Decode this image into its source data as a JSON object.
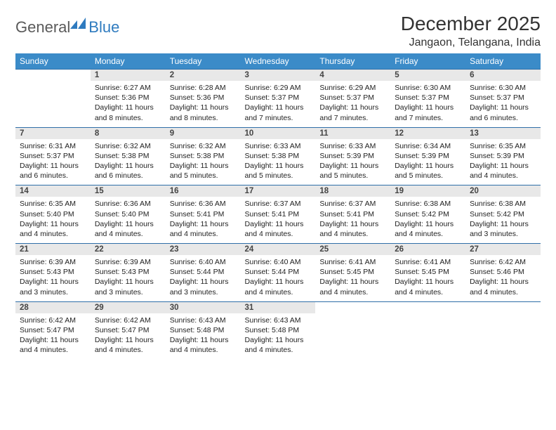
{
  "logo": {
    "brand_a": "General",
    "brand_b": "Blue"
  },
  "title": "December 2025",
  "location": "Jangaon, Telangana, India",
  "colors": {
    "header_bg": "#3b8bc8",
    "header_text": "#ffffff",
    "daynum_bg": "#e8e8e8",
    "row_border": "#2f6fa8",
    "logo_gray": "#5a5a5a",
    "logo_blue": "#2f7bbf",
    "body_text": "#222222",
    "page_bg": "#ffffff"
  },
  "fonts": {
    "body_pt": 10.5,
    "daynum_pt": 11.5,
    "header_pt": 12,
    "title_pt": 28,
    "location_pt": 16
  },
  "weekdays": [
    "Sunday",
    "Monday",
    "Tuesday",
    "Wednesday",
    "Thursday",
    "Friday",
    "Saturday"
  ],
  "layout": {
    "first_weekday_offset": 1,
    "columns": 7,
    "rows": 5
  },
  "days": [
    {
      "n": 1,
      "sunrise": "6:27 AM",
      "sunset": "5:36 PM",
      "daylight": "11 hours and 8 minutes."
    },
    {
      "n": 2,
      "sunrise": "6:28 AM",
      "sunset": "5:36 PM",
      "daylight": "11 hours and 8 minutes."
    },
    {
      "n": 3,
      "sunrise": "6:29 AM",
      "sunset": "5:37 PM",
      "daylight": "11 hours and 7 minutes."
    },
    {
      "n": 4,
      "sunrise": "6:29 AM",
      "sunset": "5:37 PM",
      "daylight": "11 hours and 7 minutes."
    },
    {
      "n": 5,
      "sunrise": "6:30 AM",
      "sunset": "5:37 PM",
      "daylight": "11 hours and 7 minutes."
    },
    {
      "n": 6,
      "sunrise": "6:30 AM",
      "sunset": "5:37 PM",
      "daylight": "11 hours and 6 minutes."
    },
    {
      "n": 7,
      "sunrise": "6:31 AM",
      "sunset": "5:37 PM",
      "daylight": "11 hours and 6 minutes."
    },
    {
      "n": 8,
      "sunrise": "6:32 AM",
      "sunset": "5:38 PM",
      "daylight": "11 hours and 6 minutes."
    },
    {
      "n": 9,
      "sunrise": "6:32 AM",
      "sunset": "5:38 PM",
      "daylight": "11 hours and 5 minutes."
    },
    {
      "n": 10,
      "sunrise": "6:33 AM",
      "sunset": "5:38 PM",
      "daylight": "11 hours and 5 minutes."
    },
    {
      "n": 11,
      "sunrise": "6:33 AM",
      "sunset": "5:39 PM",
      "daylight": "11 hours and 5 minutes."
    },
    {
      "n": 12,
      "sunrise": "6:34 AM",
      "sunset": "5:39 PM",
      "daylight": "11 hours and 5 minutes."
    },
    {
      "n": 13,
      "sunrise": "6:35 AM",
      "sunset": "5:39 PM",
      "daylight": "11 hours and 4 minutes."
    },
    {
      "n": 14,
      "sunrise": "6:35 AM",
      "sunset": "5:40 PM",
      "daylight": "11 hours and 4 minutes."
    },
    {
      "n": 15,
      "sunrise": "6:36 AM",
      "sunset": "5:40 PM",
      "daylight": "11 hours and 4 minutes."
    },
    {
      "n": 16,
      "sunrise": "6:36 AM",
      "sunset": "5:41 PM",
      "daylight": "11 hours and 4 minutes."
    },
    {
      "n": 17,
      "sunrise": "6:37 AM",
      "sunset": "5:41 PM",
      "daylight": "11 hours and 4 minutes."
    },
    {
      "n": 18,
      "sunrise": "6:37 AM",
      "sunset": "5:41 PM",
      "daylight": "11 hours and 4 minutes."
    },
    {
      "n": 19,
      "sunrise": "6:38 AM",
      "sunset": "5:42 PM",
      "daylight": "11 hours and 4 minutes."
    },
    {
      "n": 20,
      "sunrise": "6:38 AM",
      "sunset": "5:42 PM",
      "daylight": "11 hours and 3 minutes."
    },
    {
      "n": 21,
      "sunrise": "6:39 AM",
      "sunset": "5:43 PM",
      "daylight": "11 hours and 3 minutes."
    },
    {
      "n": 22,
      "sunrise": "6:39 AM",
      "sunset": "5:43 PM",
      "daylight": "11 hours and 3 minutes."
    },
    {
      "n": 23,
      "sunrise": "6:40 AM",
      "sunset": "5:44 PM",
      "daylight": "11 hours and 3 minutes."
    },
    {
      "n": 24,
      "sunrise": "6:40 AM",
      "sunset": "5:44 PM",
      "daylight": "11 hours and 4 minutes."
    },
    {
      "n": 25,
      "sunrise": "6:41 AM",
      "sunset": "5:45 PM",
      "daylight": "11 hours and 4 minutes."
    },
    {
      "n": 26,
      "sunrise": "6:41 AM",
      "sunset": "5:45 PM",
      "daylight": "11 hours and 4 minutes."
    },
    {
      "n": 27,
      "sunrise": "6:42 AM",
      "sunset": "5:46 PM",
      "daylight": "11 hours and 4 minutes."
    },
    {
      "n": 28,
      "sunrise": "6:42 AM",
      "sunset": "5:47 PM",
      "daylight": "11 hours and 4 minutes."
    },
    {
      "n": 29,
      "sunrise": "6:42 AM",
      "sunset": "5:47 PM",
      "daylight": "11 hours and 4 minutes."
    },
    {
      "n": 30,
      "sunrise": "6:43 AM",
      "sunset": "5:48 PM",
      "daylight": "11 hours and 4 minutes."
    },
    {
      "n": 31,
      "sunrise": "6:43 AM",
      "sunset": "5:48 PM",
      "daylight": "11 hours and 4 minutes."
    }
  ],
  "labels": {
    "sunrise": "Sunrise: ",
    "sunset": "Sunset: ",
    "daylight": "Daylight: "
  }
}
